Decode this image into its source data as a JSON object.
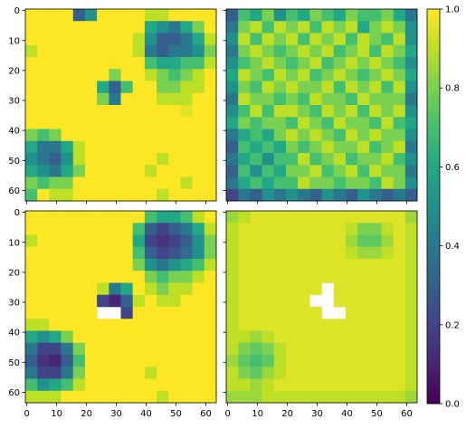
{
  "chart_data": [
    {
      "type": "heatmap",
      "colormap": "viridis",
      "xlim": [
        -0.5,
        63.5
      ],
      "ylim": [
        63.5,
        -0.5
      ],
      "xticks": [
        0,
        10,
        20,
        30,
        40,
        50,
        60
      ],
      "yticks": [
        0,
        10,
        20,
        30,
        40,
        50,
        60
      ],
      "show_xticklabels": false,
      "show_yticklabels": true,
      "z": [
        [
          1,
          1,
          1,
          1,
          0.3,
          0.5,
          1,
          1,
          1,
          1,
          0.9,
          0.9,
          1,
          1,
          1,
          1
        ],
        [
          1,
          1,
          1,
          1,
          1,
          1,
          1,
          1,
          1,
          1,
          0.6,
          0.5,
          0.4,
          0.6,
          0.8,
          1
        ],
        [
          1,
          1,
          1,
          1,
          1,
          1,
          1,
          1,
          1,
          0.9,
          0.5,
          0.3,
          0.3,
          0.4,
          0.6,
          0.9
        ],
        [
          0.9,
          1,
          1,
          1,
          1,
          1,
          1,
          1,
          1,
          0.9,
          0.4,
          0.3,
          0.4,
          0.4,
          0.5,
          0.8
        ],
        [
          1,
          1,
          1,
          1,
          1,
          1,
          1,
          1,
          1,
          1,
          0.7,
          0.6,
          0.6,
          0.7,
          0.7,
          0.9
        ],
        [
          1,
          1,
          1,
          1,
          1,
          1,
          1,
          0.8,
          1,
          1,
          0.9,
          0.8,
          0.7,
          0.8,
          0.9,
          1
        ],
        [
          1,
          1,
          1,
          1,
          1,
          1,
          0.6,
          0.3,
          0.7,
          1,
          1,
          0.8,
          0.8,
          0.9,
          0.9,
          1
        ],
        [
          1,
          1,
          1,
          1,
          1,
          1,
          0.8,
          0.4,
          1,
          1,
          1,
          0.9,
          0.9,
          0.9,
          1,
          1
        ],
        [
          1,
          1,
          1,
          1,
          1,
          1,
          1,
          1,
          1,
          1,
          1,
          1,
          1,
          0.95,
          1,
          1
        ],
        [
          1,
          1,
          1,
          1,
          1,
          1,
          1,
          1,
          1,
          1,
          1,
          1,
          1,
          1,
          1,
          1
        ],
        [
          0.8,
          0.7,
          0.8,
          1,
          1,
          1,
          1,
          1,
          1,
          1,
          1,
          1,
          1,
          1,
          1,
          1
        ],
        [
          0.6,
          0.4,
          0.4,
          0.6,
          0.9,
          1,
          1,
          1,
          1,
          1,
          1,
          1,
          1,
          1,
          1,
          1
        ],
        [
          0.5,
          0.4,
          0.3,
          0.5,
          0.9,
          1,
          1,
          1,
          1,
          1,
          1,
          0.9,
          1,
          1,
          1,
          1
        ],
        [
          0.6,
          0.5,
          0.4,
          0.6,
          0.8,
          1,
          1,
          1,
          1,
          1,
          0.9,
          1,
          1,
          1,
          1,
          1
        ],
        [
          0.8,
          0.7,
          0.8,
          0.8,
          1,
          1,
          1,
          1,
          1,
          1,
          1,
          1,
          1,
          0.9,
          1,
          1
        ],
        [
          0.7,
          1,
          0.9,
          0.9,
          1,
          1,
          1,
          1,
          1,
          1,
          1,
          0.9,
          1,
          1,
          1,
          1
        ]
      ]
    },
    {
      "type": "heatmap",
      "colormap": "viridis",
      "xlim": [
        -0.5,
        63.5
      ],
      "ylim": [
        63.5,
        -0.5
      ],
      "xticks": [
        0,
        10,
        20,
        30,
        40,
        50,
        60
      ],
      "yticks": [
        0,
        10,
        20,
        30,
        40,
        50,
        60
      ],
      "show_xticklabels": false,
      "show_yticklabels": false,
      "z": [
        [
          0.3,
          0.7,
          0.6,
          0.8,
          0.5,
          0.7,
          0.6,
          0.8,
          0.7,
          0.6,
          0.8,
          0.7,
          0.7,
          0.8,
          0.6,
          0.4
        ],
        [
          0.4,
          0.8,
          0.9,
          0.7,
          0.9,
          0.8,
          0.9,
          0.7,
          0.9,
          0.8,
          0.9,
          0.6,
          0.8,
          0.9,
          0.8,
          0.5
        ],
        [
          0.5,
          0.9,
          0.7,
          0.9,
          0.8,
          0.9,
          0.7,
          0.9,
          0.8,
          0.9,
          0.7,
          0.9,
          0.8,
          0.7,
          0.9,
          0.5
        ],
        [
          0.4,
          0.8,
          0.9,
          0.8,
          0.7,
          0.8,
          0.9,
          0.8,
          0.9,
          0.7,
          0.8,
          0.9,
          0.7,
          0.9,
          0.8,
          0.6
        ],
        [
          0.5,
          0.7,
          0.8,
          0.9,
          0.8,
          0.7,
          0.8,
          0.9,
          0.7,
          0.8,
          0.9,
          0.8,
          0.9,
          0.8,
          0.7,
          0.5
        ],
        [
          0.6,
          0.9,
          0.8,
          0.7,
          0.9,
          0.8,
          0.9,
          0.7,
          0.8,
          0.9,
          0.8,
          0.7,
          0.8,
          0.9,
          0.8,
          0.6
        ],
        [
          0.5,
          0.8,
          0.7,
          0.9,
          0.8,
          0.9,
          0.8,
          0.8,
          0.9,
          0.7,
          0.9,
          0.8,
          0.9,
          0.7,
          0.9,
          0.5
        ],
        [
          0.4,
          0.9,
          0.8,
          0.8,
          0.7,
          0.8,
          0.7,
          0.9,
          0.8,
          0.8,
          0.7,
          0.9,
          0.8,
          0.8,
          0.8,
          0.4
        ],
        [
          0.5,
          0.7,
          0.9,
          0.7,
          0.9,
          0.9,
          0.8,
          0.7,
          0.9,
          0.8,
          0.9,
          0.7,
          0.9,
          0.8,
          0.9,
          0.5
        ],
        [
          0.6,
          0.8,
          0.7,
          0.8,
          0.8,
          0.7,
          0.9,
          0.8,
          0.7,
          0.9,
          0.8,
          0.8,
          0.7,
          0.9,
          0.7,
          0.6
        ],
        [
          0.4,
          0.6,
          0.7,
          0.6,
          0.8,
          0.9,
          0.8,
          0.9,
          0.8,
          0.7,
          0.9,
          0.8,
          0.9,
          0.8,
          0.8,
          0.5
        ],
        [
          0.3,
          0.7,
          0.6,
          0.7,
          0.6,
          0.8,
          0.7,
          0.8,
          0.9,
          0.8,
          0.8,
          0.9,
          0.7,
          0.8,
          0.9,
          0.4
        ],
        [
          0.4,
          0.6,
          0.7,
          0.5,
          0.7,
          0.7,
          0.9,
          0.7,
          0.8,
          0.9,
          0.7,
          0.8,
          0.8,
          0.9,
          0.7,
          0.5
        ],
        [
          0.3,
          0.7,
          0.5,
          0.7,
          0.6,
          0.8,
          0.8,
          0.9,
          0.7,
          0.8,
          0.9,
          0.7,
          0.9,
          0.8,
          0.8,
          0.4
        ],
        [
          0.4,
          0.6,
          0.7,
          0.6,
          0.7,
          0.7,
          0.9,
          0.8,
          0.8,
          0.7,
          0.8,
          0.8,
          0.7,
          0.9,
          0.8,
          0.5
        ],
        [
          0.2,
          0.4,
          0.3,
          0.5,
          0.4,
          0.5,
          0.4,
          0.3,
          0.5,
          0.4,
          0.3,
          0.5,
          0.4,
          0.3,
          0.4,
          0.3
        ]
      ]
    },
    {
      "type": "heatmap",
      "colormap": "viridis",
      "xlim": [
        -0.5,
        63.5
      ],
      "ylim": [
        63.5,
        -0.5
      ],
      "xticks": [
        0,
        10,
        20,
        30,
        40,
        50,
        60
      ],
      "yticks": [
        0,
        10,
        20,
        30,
        40,
        50,
        60
      ],
      "show_xticklabels": true,
      "show_yticklabels": true,
      "z": [
        [
          1,
          1,
          1,
          1,
          1,
          1,
          1,
          1,
          1,
          1,
          0.7,
          0.6,
          0.6,
          0.7,
          0.9,
          1
        ],
        [
          1,
          1,
          1,
          1,
          1,
          1,
          1,
          1,
          1,
          0.7,
          0.3,
          0.2,
          0.3,
          0.4,
          0.6,
          0.9
        ],
        [
          0.9,
          1,
          1,
          1,
          1,
          1,
          1,
          1,
          1,
          0.6,
          0.2,
          0.15,
          0.2,
          0.3,
          0.5,
          0.8
        ],
        [
          1,
          1,
          1,
          1,
          1,
          1,
          1,
          1,
          1,
          0.7,
          0.3,
          0.2,
          0.25,
          0.35,
          0.5,
          0.8
        ],
        [
          1,
          1,
          1,
          1,
          1,
          1,
          1,
          1,
          1,
          0.8,
          0.5,
          0.4,
          0.5,
          0.6,
          0.7,
          0.9
        ],
        [
          1,
          1,
          1,
          1,
          1,
          1,
          1,
          1,
          1,
          1,
          0.8,
          0.7,
          0.8,
          0.8,
          0.9,
          1
        ],
        [
          1,
          1,
          1,
          1,
          1,
          1,
          0.9,
          0.4,
          0.6,
          1,
          0.9,
          0.8,
          0.9,
          0.9,
          1,
          1
        ],
        [
          1,
          1,
          1,
          1,
          1,
          1,
          0.2,
          0.1,
          0.3,
          0.9,
          1,
          0.9,
          0.9,
          1,
          1,
          1
        ],
        [
          1,
          1,
          1,
          1,
          1,
          1,
          null,
          null,
          0.2,
          1,
          1,
          1,
          1,
          1,
          1,
          1
        ],
        [
          0.9,
          0.9,
          1,
          1,
          1,
          1,
          1,
          1,
          1,
          1,
          1,
          1,
          1,
          1,
          1,
          1
        ],
        [
          0.6,
          0.5,
          0.6,
          0.8,
          1,
          1,
          1,
          1,
          1,
          1,
          1,
          1,
          1,
          1,
          1,
          1
        ],
        [
          0.4,
          0.2,
          0.2,
          0.4,
          0.8,
          1,
          1,
          1,
          1,
          1,
          1,
          1,
          1,
          1,
          1,
          1
        ],
        [
          0.3,
          0.15,
          0.1,
          0.3,
          0.7,
          1,
          1,
          1,
          1,
          1,
          1,
          1,
          1,
          1,
          1,
          1
        ],
        [
          0.4,
          0.2,
          0.2,
          0.4,
          0.8,
          1,
          1,
          1,
          1,
          1,
          0.9,
          1,
          1,
          1,
          1,
          1
        ],
        [
          0.7,
          0.5,
          0.6,
          0.7,
          0.9,
          1,
          1,
          1,
          1,
          1,
          1,
          1,
          1,
          1,
          1,
          1
        ],
        [
          0.9,
          0.9,
          0.9,
          1,
          1,
          1,
          1,
          1,
          1,
          1,
          1,
          0.9,
          1,
          1,
          1,
          1
        ]
      ]
    },
    {
      "type": "heatmap",
      "colormap": "viridis",
      "xlim": [
        -0.5,
        63.5
      ],
      "ylim": [
        63.5,
        -0.5
      ],
      "xticks": [
        0,
        10,
        20,
        30,
        40,
        50,
        60
      ],
      "yticks": [
        0,
        10,
        20,
        30,
        40,
        50,
        60
      ],
      "show_xticklabels": true,
      "show_yticklabels": false,
      "z": [
        [
          0.85,
          0.9,
          0.95,
          0.95,
          0.95,
          0.95,
          0.95,
          0.95,
          0.95,
          0.95,
          0.95,
          0.95,
          0.95,
          0.95,
          0.95,
          0.85
        ],
        [
          0.9,
          0.95,
          0.95,
          0.95,
          0.95,
          0.95,
          0.95,
          0.95,
          0.95,
          0.95,
          0.9,
          0.8,
          0.8,
          0.9,
          0.95,
          0.9
        ],
        [
          0.9,
          0.95,
          0.95,
          0.95,
          0.95,
          0.95,
          0.95,
          0.95,
          0.95,
          0.95,
          0.85,
          0.75,
          0.75,
          0.85,
          0.95,
          0.9
        ],
        [
          0.9,
          0.95,
          0.95,
          0.95,
          0.95,
          0.95,
          0.95,
          0.95,
          0.95,
          0.95,
          0.9,
          0.85,
          0.85,
          0.9,
          0.95,
          0.9
        ],
        [
          0.9,
          0.95,
          0.95,
          0.95,
          0.95,
          0.95,
          0.95,
          0.95,
          0.95,
          0.95,
          0.95,
          0.95,
          0.95,
          0.95,
          0.95,
          0.9
        ],
        [
          0.9,
          0.95,
          0.95,
          0.95,
          0.95,
          0.95,
          0.95,
          0.95,
          0.95,
          0.95,
          0.95,
          0.95,
          0.95,
          0.95,
          0.95,
          0.9
        ],
        [
          0.9,
          0.95,
          0.95,
          0.95,
          0.95,
          0.95,
          0.95,
          0.95,
          null,
          0.95,
          0.95,
          0.95,
          0.95,
          0.95,
          0.95,
          0.9
        ],
        [
          0.9,
          0.95,
          0.95,
          0.95,
          0.95,
          0.95,
          0.95,
          null,
          null,
          0.95,
          0.95,
          0.95,
          0.95,
          0.95,
          0.95,
          0.9
        ],
        [
          0.9,
          0.95,
          0.95,
          0.95,
          0.95,
          0.95,
          0.95,
          0.95,
          null,
          null,
          0.95,
          0.95,
          0.95,
          0.95,
          0.95,
          0.9
        ],
        [
          0.9,
          0.95,
          0.95,
          0.95,
          0.95,
          0.95,
          0.95,
          0.95,
          0.95,
          0.95,
          0.95,
          0.95,
          0.95,
          0.95,
          0.95,
          0.9
        ],
        [
          0.9,
          0.9,
          0.85,
          0.9,
          0.95,
          0.95,
          0.95,
          0.95,
          0.95,
          0.95,
          0.95,
          0.95,
          0.95,
          0.95,
          0.95,
          0.9
        ],
        [
          0.9,
          0.8,
          0.75,
          0.8,
          0.9,
          0.95,
          0.95,
          0.95,
          0.95,
          0.95,
          0.95,
          0.95,
          0.95,
          0.95,
          0.95,
          0.9
        ],
        [
          0.85,
          0.75,
          0.7,
          0.75,
          0.9,
          0.95,
          0.95,
          0.95,
          0.95,
          0.95,
          0.95,
          0.95,
          0.95,
          0.95,
          0.95,
          0.9
        ],
        [
          0.9,
          0.8,
          0.75,
          0.85,
          0.9,
          0.95,
          0.95,
          0.95,
          0.95,
          0.95,
          0.95,
          0.95,
          0.95,
          0.95,
          0.95,
          0.9
        ],
        [
          0.9,
          0.9,
          0.85,
          0.9,
          0.95,
          0.95,
          0.95,
          0.95,
          0.95,
          0.95,
          0.95,
          0.95,
          0.95,
          0.95,
          0.95,
          0.9
        ],
        [
          0.85,
          0.85,
          0.85,
          0.9,
          0.9,
          0.9,
          0.9,
          0.9,
          0.9,
          0.9,
          0.9,
          0.9,
          0.9,
          0.9,
          0.9,
          0.85
        ]
      ]
    }
  ],
  "colorbar": {
    "colormap": "viridis",
    "lim": [
      0,
      1
    ],
    "ticks": [
      {
        "value": 0,
        "label": "0.0"
      },
      {
        "value": 0.2,
        "label": "0.2"
      },
      {
        "value": 0.4,
        "label": "0.4"
      },
      {
        "value": 0.6,
        "label": "0.6"
      },
      {
        "value": 0.8,
        "label": "0.8"
      },
      {
        "value": 1,
        "label": "1.0"
      }
    ]
  }
}
